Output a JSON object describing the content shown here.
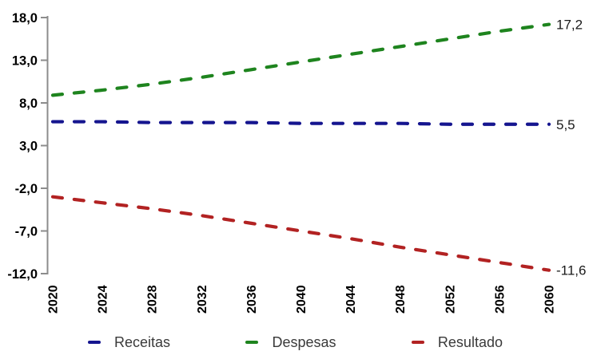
{
  "chart_data": {
    "type": "line",
    "title": "",
    "xlabel": "",
    "ylabel": "",
    "grid": false,
    "legend_position": "bottom",
    "x": [
      2020,
      2024,
      2028,
      2032,
      2036,
      2040,
      2044,
      2048,
      2052,
      2056,
      2060
    ],
    "x_tick_labels": [
      "2020",
      "2024",
      "2028",
      "2032",
      "2036",
      "2040",
      "2044",
      "2048",
      "2052",
      "2056",
      "2060"
    ],
    "ylim": [
      -12,
      18
    ],
    "y_ticks": [
      18,
      13,
      8,
      3,
      -2,
      -7,
      -12
    ],
    "y_tick_labels": [
      "18,0",
      "13,0",
      "8,0",
      "3,0",
      "-2,0",
      "-7,0",
      "-12,0"
    ],
    "axis_color": "#8C8C8C",
    "line_style": "dashed",
    "series": [
      {
        "name": "Receitas",
        "color": "#15158F",
        "end_label": "5,5",
        "values": [
          5.8,
          5.8,
          5.7,
          5.7,
          5.7,
          5.6,
          5.6,
          5.6,
          5.5,
          5.5,
          5.5
        ]
      },
      {
        "name": "Despesas",
        "color": "#1E841E",
        "end_label": "17,2",
        "values": [
          8.9,
          9.5,
          10.2,
          11.0,
          11.9,
          12.8,
          13.7,
          14.6,
          15.5,
          16.4,
          17.2
        ]
      },
      {
        "name": "Resultado",
        "color": "#B22222",
        "end_label": "-11,6",
        "values": [
          -3.0,
          -3.7,
          -4.4,
          -5.2,
          -6.1,
          -7.0,
          -7.9,
          -8.9,
          -9.8,
          -10.7,
          -11.6
        ]
      }
    ]
  }
}
